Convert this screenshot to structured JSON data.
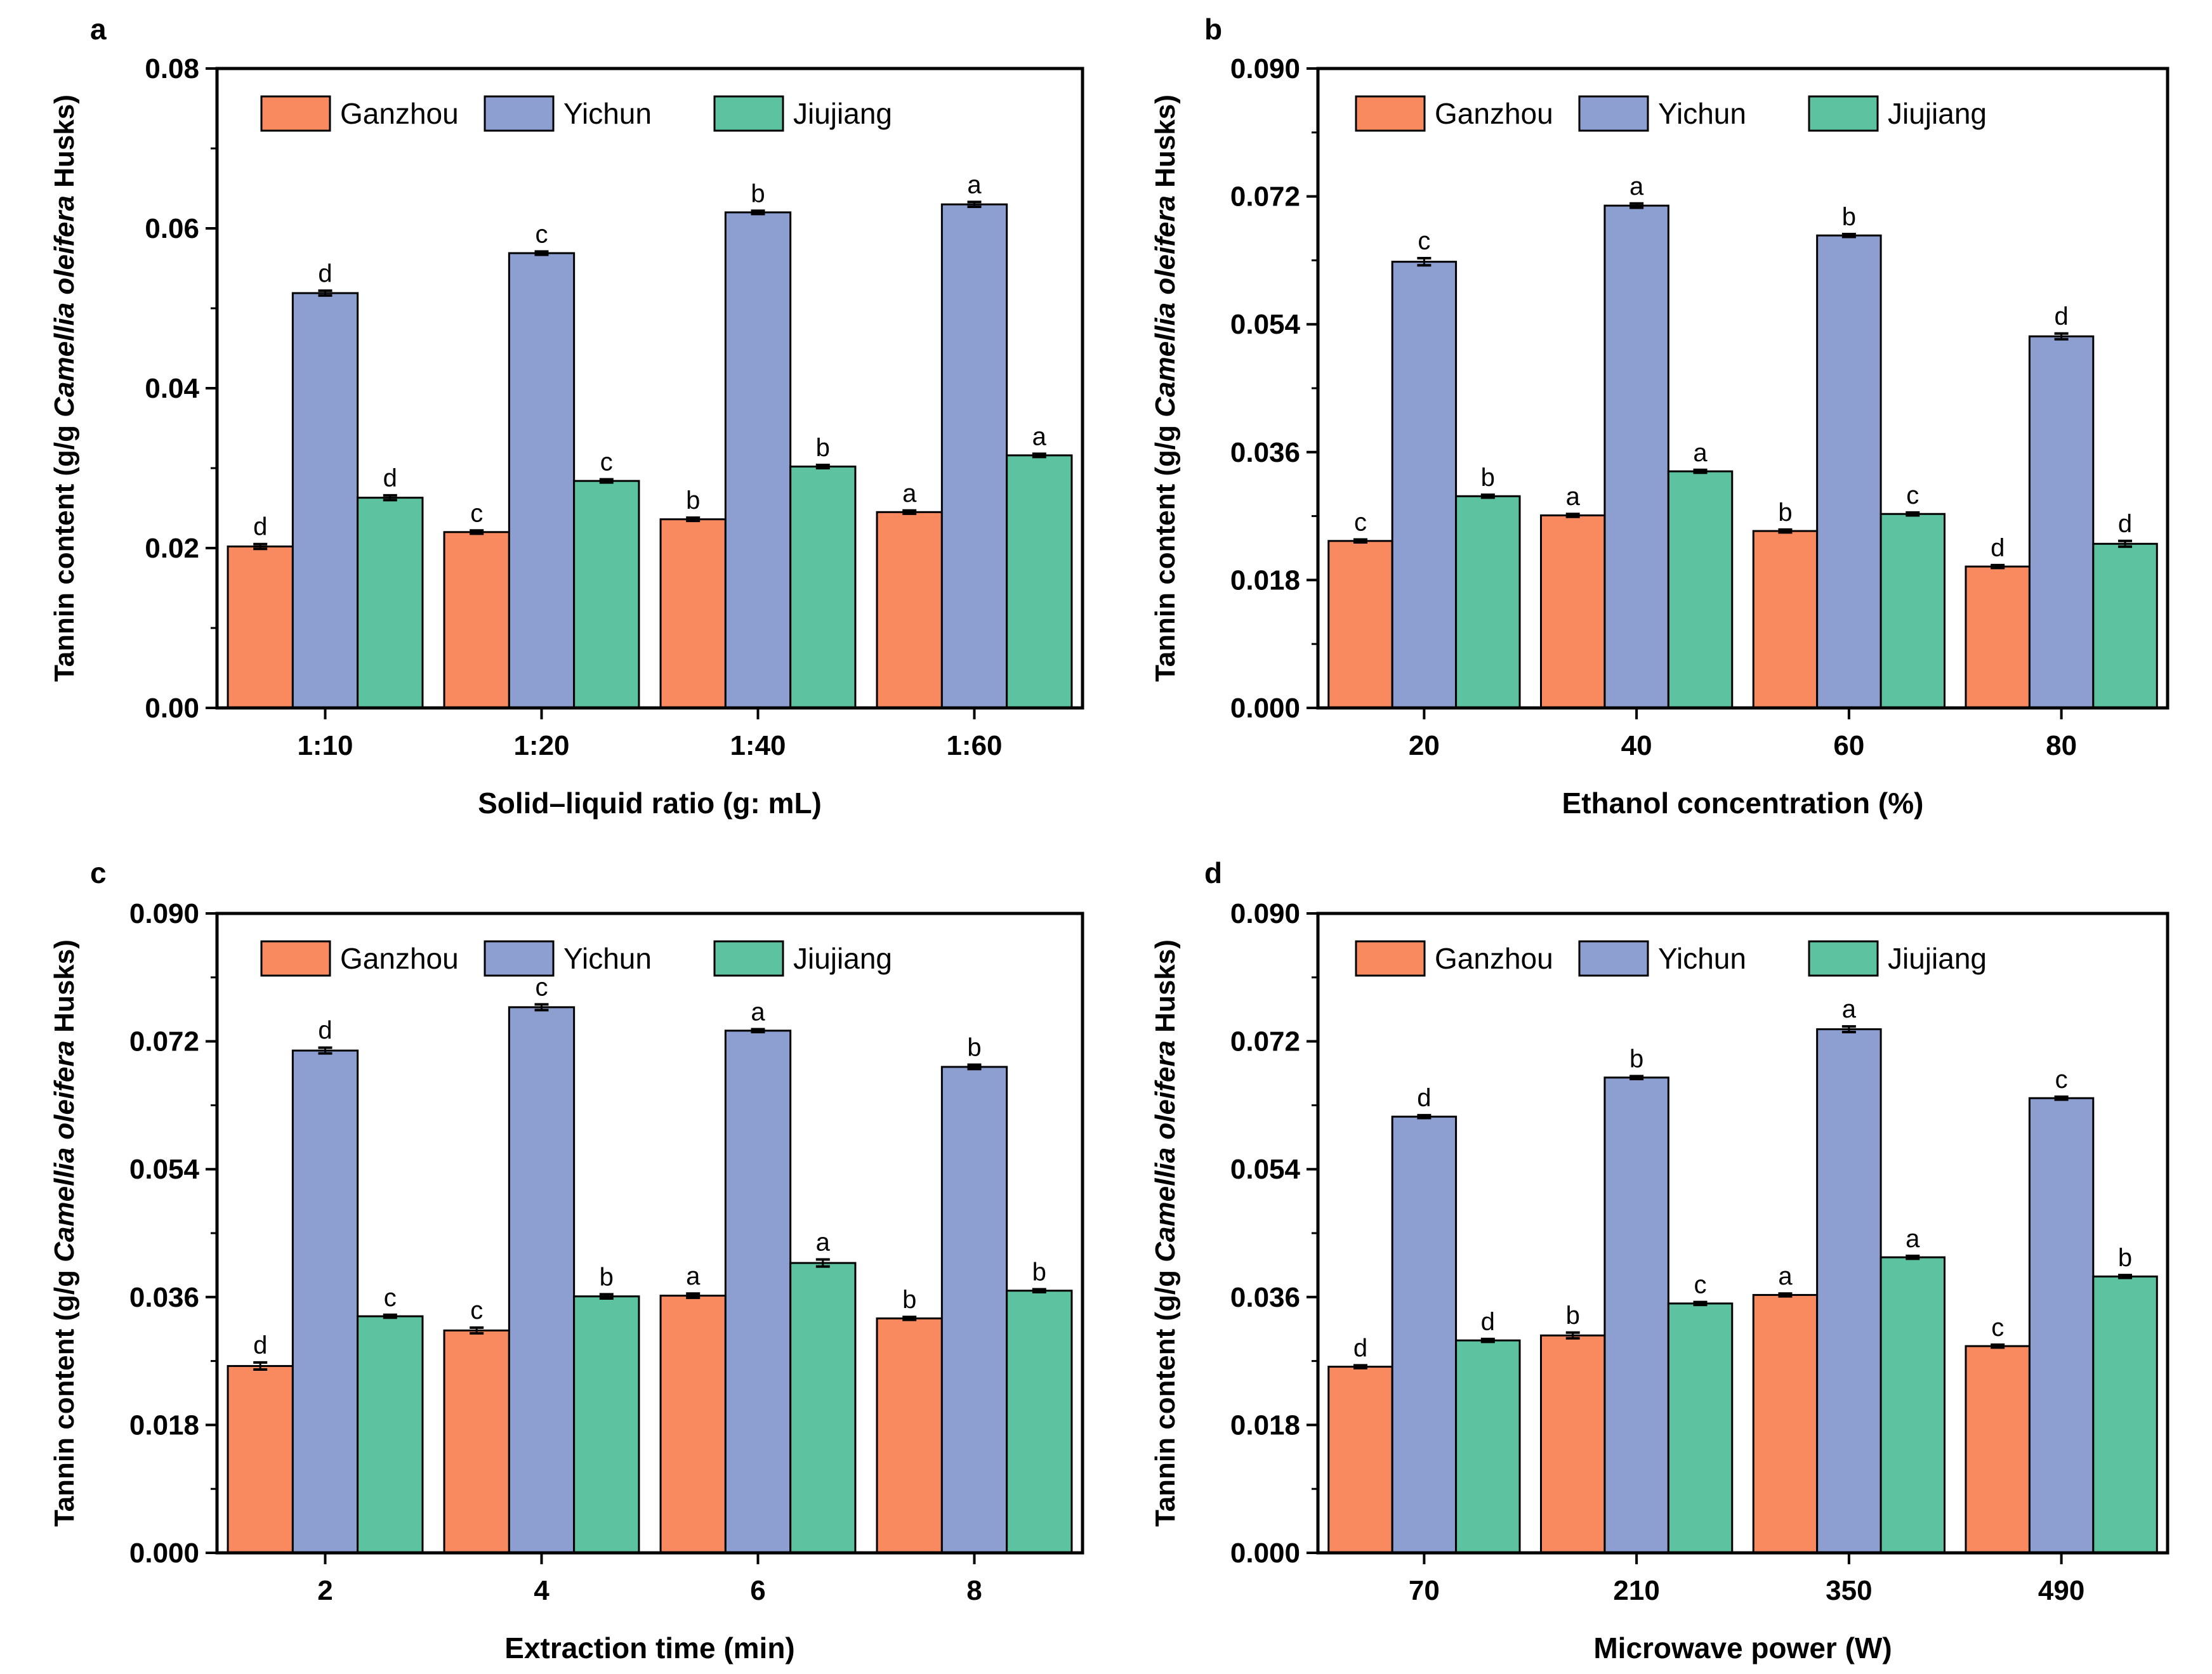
{
  "figure": {
    "series_names": [
      "Ganzhou",
      "Yichun",
      "Jiujiang"
    ],
    "colors": {
      "Ganzhou": "#f98a5f",
      "Yichun": "#8c9fd0",
      "Jiujiang": "#5cc2a0"
    },
    "ylabel_prefix": "Tannin content (g/g ",
    "ylabel_italic": "Camellia oleifera",
    "ylabel_suffix": " Husks)"
  },
  "chart_data": [
    {
      "panel": "a",
      "type": "bar",
      "xlabel": "Solid–liquid ratio (g: mL)",
      "categories": [
        "1:10",
        "1:20",
        "1:40",
        "1:60"
      ],
      "ylim": [
        0,
        0.08
      ],
      "yticks": [
        "0.00",
        "0.02",
        "0.04",
        "0.06",
        "0.08"
      ],
      "series": [
        {
          "name": "Ganzhou",
          "values": [
            0.0202,
            0.022,
            0.0236,
            0.0245
          ],
          "errors": [
            0.0003,
            0.0002,
            0.0002,
            0.0002
          ],
          "letters": [
            "d",
            "c",
            "b",
            "a"
          ]
        },
        {
          "name": "Yichun",
          "values": [
            0.0519,
            0.0569,
            0.062,
            0.063
          ],
          "errors": [
            0.0003,
            0.0002,
            0.0002,
            0.0003
          ],
          "letters": [
            "d",
            "c",
            "b",
            "a"
          ]
        },
        {
          "name": "Jiujiang",
          "values": [
            0.0263,
            0.0284,
            0.0302,
            0.0316
          ],
          "errors": [
            0.0003,
            0.0002,
            0.0002,
            0.0002
          ],
          "letters": [
            "d",
            "c",
            "b",
            "a"
          ]
        }
      ]
    },
    {
      "panel": "b",
      "type": "bar",
      "xlabel": "Ethanol concentration (%)",
      "categories": [
        "20",
        "40",
        "60",
        "80"
      ],
      "ylim": [
        0,
        0.09
      ],
      "yticks": [
        "0.000",
        "0.018",
        "0.036",
        "0.054",
        "0.072",
        "0.090"
      ],
      "series": [
        {
          "name": "Ganzhou",
          "values": [
            0.0235,
            0.0271,
            0.0249,
            0.0199
          ],
          "errors": [
            0.0002,
            0.0002,
            0.0002,
            0.0002
          ],
          "letters": [
            "c",
            "a",
            "b",
            "d"
          ]
        },
        {
          "name": "Yichun",
          "values": [
            0.0628,
            0.0707,
            0.0665,
            0.0523
          ],
          "errors": [
            0.0005,
            0.0003,
            0.0002,
            0.0004
          ],
          "letters": [
            "c",
            "a",
            "b",
            "d"
          ]
        },
        {
          "name": "Jiujiang",
          "values": [
            0.0298,
            0.0333,
            0.0273,
            0.0231
          ],
          "errors": [
            0.0002,
            0.0002,
            0.0002,
            0.0004
          ],
          "letters": [
            "b",
            "a",
            "c",
            "d"
          ]
        }
      ]
    },
    {
      "panel": "c",
      "type": "bar",
      "xlabel": "Extraction time (min)",
      "categories": [
        "2",
        "4",
        "6",
        "8"
      ],
      "ylim": [
        0,
        0.09
      ],
      "yticks": [
        "0.000",
        "0.018",
        "0.036",
        "0.054",
        "0.072",
        "0.090"
      ],
      "series": [
        {
          "name": "Ganzhou",
          "values": [
            0.0263,
            0.0313,
            0.0362,
            0.033
          ],
          "errors": [
            0.0005,
            0.0004,
            0.0003,
            0.0002
          ],
          "letters": [
            "d",
            "c",
            "a",
            "b"
          ]
        },
        {
          "name": "Yichun",
          "values": [
            0.0707,
            0.0768,
            0.0735,
            0.0684
          ],
          "errors": [
            0.0004,
            0.0004,
            0.0002,
            0.0003
          ],
          "letters": [
            "d",
            "c",
            "a",
            "b"
          ]
        },
        {
          "name": "Jiujiang",
          "values": [
            0.0333,
            0.0361,
            0.0408,
            0.0369
          ],
          "errors": [
            0.0002,
            0.0003,
            0.0005,
            0.0002
          ],
          "letters": [
            "c",
            "b",
            "a",
            "b"
          ]
        }
      ]
    },
    {
      "panel": "d",
      "type": "bar",
      "xlabel": "Microwave power (W)",
      "categories": [
        "70",
        "210",
        "350",
        "490"
      ],
      "ylim": [
        0,
        0.09
      ],
      "yticks": [
        "0.000",
        "0.018",
        "0.036",
        "0.054",
        "0.072",
        "0.090"
      ],
      "series": [
        {
          "name": "Ganzhou",
          "values": [
            0.0262,
            0.0306,
            0.0363,
            0.0291
          ],
          "errors": [
            0.0002,
            0.0004,
            0.0002,
            0.0002
          ],
          "letters": [
            "d",
            "b",
            "a",
            "c"
          ]
        },
        {
          "name": "Yichun",
          "values": [
            0.0614,
            0.0669,
            0.0737,
            0.064
          ],
          "errors": [
            0.0002,
            0.0002,
            0.0004,
            0.0002
          ],
          "letters": [
            "d",
            "b",
            "a",
            "c"
          ]
        },
        {
          "name": "Jiujiang",
          "values": [
            0.0299,
            0.0351,
            0.0416,
            0.0389
          ],
          "errors": [
            0.0002,
            0.0002,
            0.0002,
            0.0002
          ],
          "letters": [
            "d",
            "c",
            "a",
            "b"
          ]
        }
      ]
    }
  ]
}
